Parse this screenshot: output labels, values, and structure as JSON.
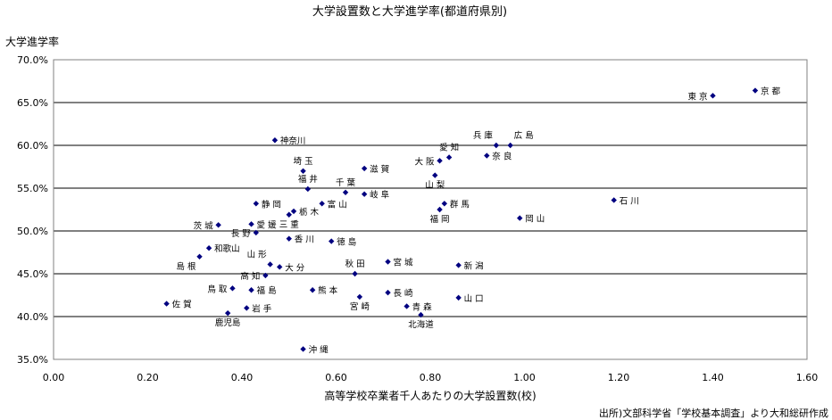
{
  "chart_data": {
    "type": "scatter",
    "title": "大学設置数と大学進学率(都道府県別)",
    "xlabel": "高等学校卒業者千人あたりの大学設置数(校)",
    "ylabel": "大学進学率",
    "source_note": "出所)文部科学省「学校基本調査」より大和総研作成",
    "xlim": [
      0,
      1.6
    ],
    "ylim": [
      35,
      70
    ],
    "xticks": [
      {
        "v": 0.0,
        "label": "0.00"
      },
      {
        "v": 0.2,
        "label": "0.20"
      },
      {
        "v": 0.4,
        "label": "0.40"
      },
      {
        "v": 0.6,
        "label": "0.60"
      },
      {
        "v": 0.8,
        "label": "0.80"
      },
      {
        "v": 1.0,
        "label": "1.00"
      },
      {
        "v": 1.2,
        "label": "1.20"
      },
      {
        "v": 1.4,
        "label": "1.40"
      },
      {
        "v": 1.6,
        "label": "1.60"
      }
    ],
    "yticks": [
      {
        "v": 35,
        "label": "35.0%"
      },
      {
        "v": 40,
        "label": "40.0%"
      },
      {
        "v": 45,
        "label": "45.0%"
      },
      {
        "v": 50,
        "label": "50.0%"
      },
      {
        "v": 55,
        "label": "55.0%"
      },
      {
        "v": 60,
        "label": "60.0%"
      },
      {
        "v": 65,
        "label": "65.0%"
      },
      {
        "v": 70,
        "label": "70.0%"
      }
    ],
    "grid": "horizontal",
    "marker_color": "#000080",
    "points": [
      {
        "label": "京 都",
        "x": 1.49,
        "y": 66.4,
        "pos": "right"
      },
      {
        "label": "東 京",
        "x": 1.4,
        "y": 65.8,
        "pos": "left"
      },
      {
        "label": "兵 庫",
        "x": 0.94,
        "y": 60.0,
        "pos": "above-left"
      },
      {
        "label": "広 島",
        "x": 0.97,
        "y": 60.0,
        "pos": "above-right"
      },
      {
        "label": "神奈川",
        "x": 0.47,
        "y": 60.6,
        "pos": "right"
      },
      {
        "label": "愛 知",
        "x": 0.84,
        "y": 58.6,
        "pos": "above"
      },
      {
        "label": "奈 良",
        "x": 0.92,
        "y": 58.8,
        "pos": "right"
      },
      {
        "label": "大 阪",
        "x": 0.82,
        "y": 58.2,
        "pos": "left"
      },
      {
        "label": "埼 玉",
        "x": 0.53,
        "y": 57.0,
        "pos": "above"
      },
      {
        "label": "滋 賀",
        "x": 0.66,
        "y": 57.3,
        "pos": "right"
      },
      {
        "label": "山 梨",
        "x": 0.81,
        "y": 56.5,
        "pos": "below"
      },
      {
        "label": "福 井",
        "x": 0.54,
        "y": 54.9,
        "pos": "above"
      },
      {
        "label": "千 葉",
        "x": 0.62,
        "y": 54.5,
        "pos": "above"
      },
      {
        "label": "岐 阜",
        "x": 0.66,
        "y": 54.3,
        "pos": "right"
      },
      {
        "label": "静 岡",
        "x": 0.43,
        "y": 53.2,
        "pos": "right"
      },
      {
        "label": "富 山",
        "x": 0.57,
        "y": 53.2,
        "pos": "right"
      },
      {
        "label": "栃 木",
        "x": 0.51,
        "y": 52.3,
        "pos": "right"
      },
      {
        "label": "群 馬",
        "x": 0.83,
        "y": 53.2,
        "pos": "right"
      },
      {
        "label": "石 川",
        "x": 1.19,
        "y": 53.6,
        "pos": "right"
      },
      {
        "label": "福 岡",
        "x": 0.82,
        "y": 52.5,
        "pos": "below"
      },
      {
        "label": "岡 山",
        "x": 0.99,
        "y": 51.5,
        "pos": "right"
      },
      {
        "label": "三 重",
        "x": 0.5,
        "y": 51.9,
        "pos": "below"
      },
      {
        "label": "茨 城",
        "x": 0.35,
        "y": 50.7,
        "pos": "left"
      },
      {
        "label": "愛 媛",
        "x": 0.42,
        "y": 50.8,
        "pos": "right"
      },
      {
        "label": "長 野",
        "x": 0.43,
        "y": 49.8,
        "pos": "left"
      },
      {
        "label": "香 川",
        "x": 0.5,
        "y": 49.1,
        "pos": "right"
      },
      {
        "label": "徳 島",
        "x": 0.59,
        "y": 48.8,
        "pos": "right"
      },
      {
        "label": "和歌山",
        "x": 0.33,
        "y": 48.0,
        "pos": "right"
      },
      {
        "label": "山 形",
        "x": 0.46,
        "y": 46.1,
        "pos": "above-left"
      },
      {
        "label": "大 分",
        "x": 0.48,
        "y": 45.8,
        "pos": "right"
      },
      {
        "label": "島 根",
        "x": 0.31,
        "y": 47.0,
        "pos": "below-left"
      },
      {
        "label": "秋 田",
        "x": 0.64,
        "y": 45.0,
        "pos": "above"
      },
      {
        "label": "宮 城",
        "x": 0.71,
        "y": 46.4,
        "pos": "right"
      },
      {
        "label": "新 潟",
        "x": 0.86,
        "y": 46.0,
        "pos": "right"
      },
      {
        "label": "高 知",
        "x": 0.45,
        "y": 44.8,
        "pos": "left"
      },
      {
        "label": "鳥 取",
        "x": 0.38,
        "y": 43.3,
        "pos": "left"
      },
      {
        "label": "福 島",
        "x": 0.42,
        "y": 43.1,
        "pos": "right"
      },
      {
        "label": "熊 本",
        "x": 0.55,
        "y": 43.1,
        "pos": "right"
      },
      {
        "label": "長 崎",
        "x": 0.71,
        "y": 42.8,
        "pos": "right"
      },
      {
        "label": "山 口",
        "x": 0.86,
        "y": 42.2,
        "pos": "right"
      },
      {
        "label": "宮 崎",
        "x": 0.65,
        "y": 42.3,
        "pos": "below"
      },
      {
        "label": "佐 賀",
        "x": 0.24,
        "y": 41.5,
        "pos": "right"
      },
      {
        "label": "岩 手",
        "x": 0.41,
        "y": 41.0,
        "pos": "right"
      },
      {
        "label": "青 森",
        "x": 0.75,
        "y": 41.2,
        "pos": "right"
      },
      {
        "label": "鹿児島",
        "x": 0.37,
        "y": 40.4,
        "pos": "below"
      },
      {
        "label": "北海道",
        "x": 0.78,
        "y": 40.2,
        "pos": "below"
      },
      {
        "label": "沖 縄",
        "x": 0.53,
        "y": 36.2,
        "pos": "right"
      }
    ]
  }
}
